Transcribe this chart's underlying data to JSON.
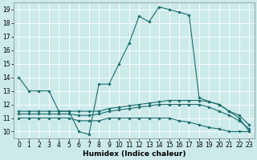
{
  "background_color": "#cceaea",
  "grid_color": "#ffffff",
  "line_color": "#1a6b6b",
  "xlabel": "Humidex (Indice chaleur)",
  "xlim": [
    -0.5,
    23.5
  ],
  "ylim": [
    9.5,
    19.5
  ],
  "xticks": [
    0,
    1,
    2,
    3,
    4,
    5,
    6,
    7,
    8,
    9,
    10,
    11,
    12,
    13,
    14,
    15,
    16,
    17,
    18,
    19,
    20,
    21,
    22,
    23
  ],
  "yticks": [
    10,
    11,
    12,
    13,
    14,
    15,
    16,
    17,
    18,
    19
  ],
  "series": [
    {
      "x": [
        0,
        1,
        2,
        3,
        4,
        5,
        6,
        7,
        8,
        9,
        10,
        11,
        12,
        13,
        14,
        15,
        16,
        17,
        18,
        19,
        20,
        21,
        22,
        23
      ],
      "y": [
        14,
        13,
        13,
        13,
        11.5,
        11.5,
        10,
        9.8,
        13.5,
        13.5,
        15,
        16.5,
        18.5,
        18.1,
        19.2,
        19.0,
        18.8,
        18.6,
        12.5,
        12.2,
        12.0,
        11.5,
        11.0,
        10.0
      ]
    },
    {
      "x": [
        0,
        1,
        2,
        3,
        4,
        5,
        6,
        7,
        8,
        9,
        10,
        11,
        12,
        13,
        14,
        15,
        16,
        17,
        18,
        19,
        20,
        21,
        22,
        23
      ],
      "y": [
        11.5,
        11.5,
        11.5,
        11.5,
        11.5,
        11.5,
        11.5,
        11.5,
        11.5,
        11.7,
        11.8,
        11.9,
        12.0,
        12.1,
        12.2,
        12.3,
        12.3,
        12.3,
        12.3,
        12.2,
        12.0,
        11.5,
        11.2,
        10.5
      ]
    },
    {
      "x": [
        0,
        1,
        2,
        3,
        4,
        5,
        6,
        7,
        8,
        9,
        10,
        11,
        12,
        13,
        14,
        15,
        16,
        17,
        18,
        19,
        20,
        21,
        22,
        23
      ],
      "y": [
        11.3,
        11.3,
        11.3,
        11.3,
        11.3,
        11.3,
        11.2,
        11.2,
        11.3,
        11.5,
        11.6,
        11.7,
        11.8,
        11.9,
        12.0,
        12.0,
        12.0,
        12.0,
        12.0,
        11.8,
        11.5,
        11.2,
        10.8,
        10.2
      ]
    },
    {
      "x": [
        0,
        1,
        2,
        3,
        4,
        5,
        6,
        7,
        8,
        9,
        10,
        11,
        12,
        13,
        14,
        15,
        16,
        17,
        18,
        19,
        20,
        21,
        22,
        23
      ],
      "y": [
        11.0,
        11.0,
        11.0,
        11.0,
        11.0,
        11.0,
        10.8,
        10.8,
        10.8,
        11.0,
        11.0,
        11.0,
        11.0,
        11.0,
        11.0,
        11.0,
        10.8,
        10.7,
        10.5,
        10.3,
        10.2,
        10.0,
        10.0,
        10.0
      ]
    }
  ]
}
